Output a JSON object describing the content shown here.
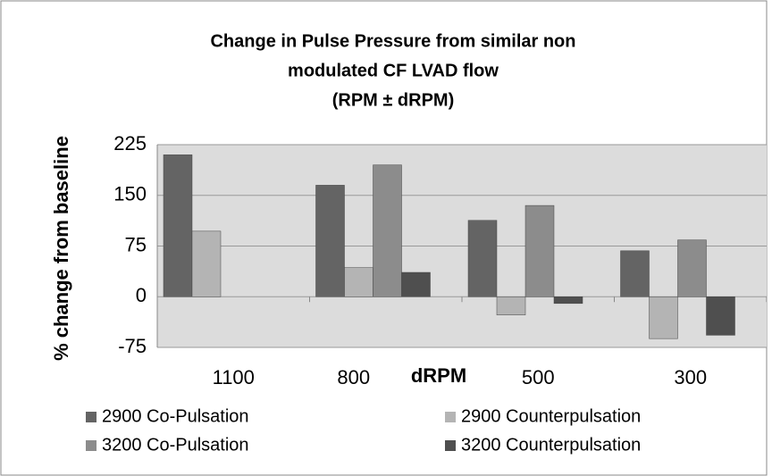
{
  "chart_data": {
    "type": "bar",
    "title": [
      "Change in Pulse Pressure from similar non",
      "modulated CF LVAD flow",
      "(RPM ± dRPM)"
    ],
    "x_label": "dRPM",
    "y_label": "% change from baseline",
    "categories": [
      "1100",
      "800",
      "500",
      "300"
    ],
    "series": [
      {
        "name": "2900 Co-Pulsation",
        "color": "#646464",
        "values": [
          210,
          165,
          113,
          68
        ]
      },
      {
        "name": "2900 Counterpulsation",
        "color": "#b4b4b4",
        "values": [
          97,
          43,
          -27,
          -62
        ]
      },
      {
        "name": "3200 Co-Pulsation",
        "color": "#8c8c8c",
        "values": [
          null,
          195,
          135,
          84
        ]
      },
      {
        "name": "3200 Counterpulsation",
        "color": "#4f4f4f",
        "values": [
          null,
          36,
          -10,
          -57
        ]
      }
    ],
    "ylim": [
      -75,
      225
    ],
    "yticks": [
      -75,
      0,
      75,
      150,
      225
    ],
    "grid": true
  }
}
